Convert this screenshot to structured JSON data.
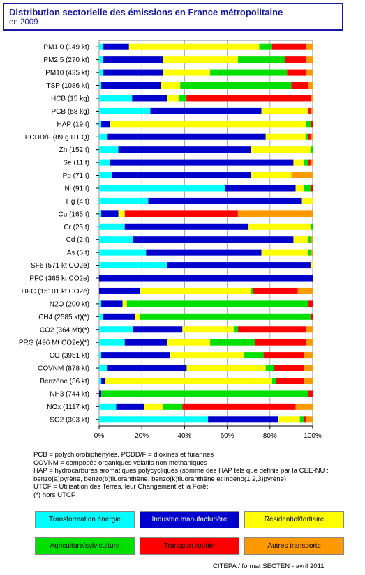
{
  "title": {
    "line1": "Distribution sectorielle des émissions en France métropolitaine",
    "line2": "en 2009"
  },
  "chart_data": {
    "type": "bar",
    "orientation": "horizontal",
    "stacked": "percent",
    "xlim": [
      0,
      100
    ],
    "x_ticks": [
      "0%",
      "20%",
      "40%",
      "60%",
      "80%",
      "100%"
    ],
    "grid": true,
    "categories": [
      "PM1,0 (149 kt)",
      "PM2,5 (270 kt)",
      "PM10 (435 kt)",
      "TSP (1086 kt)",
      "HCB (15 kg)",
      "PCB (58 kg)",
      "HAP (19 t)",
      "PCDD/F (89 g ITEQ)",
      "Zn (152 t)",
      "Se (11 t)",
      "Pb (71 t)",
      "Ni (91 t)",
      "Hg (4 t)",
      "Cu (165 t)",
      "Cr (25 t)",
      "Cd (2 t)",
      "As (6 t)",
      "SF6 (571 kt CO2e)",
      "PFC (365 kt CO2e)",
      "HFC (15101 kt CO2e)",
      "N2O (200 kt)",
      "CH4 (2585 kt)(*)",
      "CO2 (364 Mt)(*)",
      "PRG (496 Mt CO2e)(*)",
      "CO (3951 kt)",
      "COVNM (878 kt)",
      "Benzène (36 kt)",
      "NH3 (744 kt)",
      "NOx (1117 kt)",
      "SO2 (303 kt)"
    ],
    "series": [
      {
        "name": "Transformation énergie",
        "color": "#00ffff",
        "values": [
          2,
          2,
          2,
          1,
          17,
          24,
          1,
          4,
          9,
          5,
          6,
          59,
          23,
          1,
          12,
          16,
          22,
          32,
          0,
          0,
          1,
          2,
          16,
          12,
          1,
          4,
          1,
          0,
          8,
          51
        ]
      },
      {
        "name": "Industrie manufacturière",
        "color": "#0000cd",
        "values": [
          12,
          28,
          28,
          28,
          18,
          52,
          4,
          74,
          62,
          86,
          65,
          33,
          72,
          8,
          58,
          75,
          54,
          67,
          100,
          19,
          10,
          15,
          23,
          20,
          32,
          37,
          2,
          1,
          13,
          33
        ]
      },
      {
        "name": "Résidentiel/tertiaire",
        "color": "#ffff00",
        "values": [
          61,
          35,
          22,
          9,
          6,
          22,
          92,
          19,
          28,
          5,
          19,
          4,
          5,
          3,
          29,
          7,
          22,
          1,
          0,
          52,
          2,
          2,
          24,
          20,
          35,
          37,
          78,
          0,
          9,
          10
        ]
      },
      {
        "name": "Agriculture/sylviculture",
        "color": "#00e000",
        "values": [
          6,
          22,
          36,
          52,
          4,
          0,
          2,
          1,
          1,
          2,
          0,
          3,
          0,
          0,
          1,
          1,
          1,
          0,
          0,
          1,
          85,
          80,
          2,
          21,
          9,
          4,
          2,
          97,
          9,
          2
        ]
      },
      {
        "name": "Transport routier",
        "color": "#ff0000",
        "values": [
          16,
          10,
          9,
          8,
          64,
          1,
          1,
          1,
          0,
          1,
          0,
          1,
          0,
          53,
          0,
          0,
          0,
          0,
          0,
          21,
          2,
          1,
          32,
          24,
          19,
          14,
          13,
          2,
          53,
          1
        ]
      },
      {
        "name": "Autres transports",
        "color": "#ff9900",
        "values": [
          3,
          3,
          3,
          2,
          1,
          1,
          0,
          1,
          0,
          1,
          10,
          0,
          0,
          35,
          0,
          1,
          1,
          0,
          0,
          7,
          0,
          0,
          3,
          3,
          4,
          4,
          4,
          0,
          8,
          3
        ]
      }
    ]
  },
  "notes": [
    "PCB = polychlorobiphényles, PCDD/F = dioxines et furannes",
    "COVNM = composés organiques volatils non méthaniques",
    "HAP = hydrocarbures aromatiques polycycliques (somme des HAP tels que définis par la CEE-NU :",
    "benzo(a)pyrène, benzo(b)fluoranthène, benzo(k)fluoranthène et indeno(1,2,3)pyrène)",
    "UTCF = Utilisation des Terres, leur Changement et la Forêt",
    "(*) hors UTCF"
  ],
  "source": "CITEPA / format SECTEN -  avril 2011"
}
